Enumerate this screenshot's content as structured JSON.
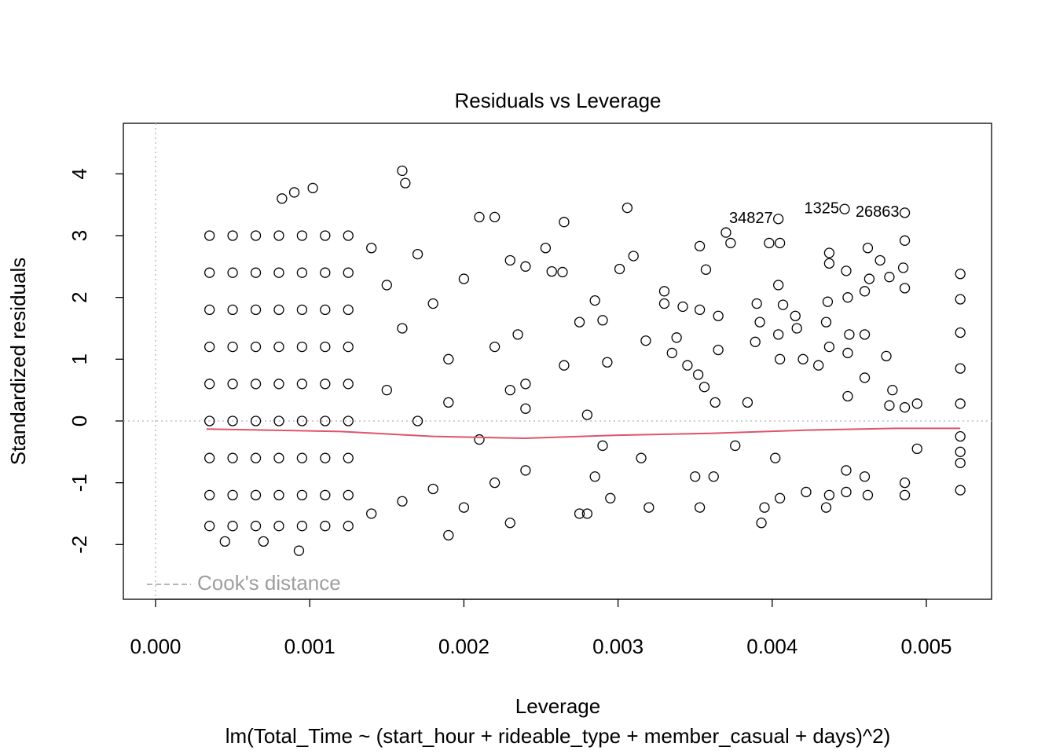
{
  "chart_data": {
    "type": "scatter",
    "title": "Residuals vs Leverage",
    "x_label": "Leverage",
    "y_label": "Standardized residuals",
    "subtitle": "lm(Total_Time ~ (start_hour + rideable_type + member_casual + days)^2)",
    "xlim": [
      -0.000209,
      0.005423
    ],
    "ylim": [
      -2.886,
      4.818
    ],
    "xticks": [
      {
        "value": 0,
        "label": "0.000"
      },
      {
        "value": 0.001,
        "label": "0.001"
      },
      {
        "value": 0.002,
        "label": "0.002"
      },
      {
        "value": 0.003,
        "label": "0.003"
      },
      {
        "value": 0.004,
        "label": "0.004"
      },
      {
        "value": 0.005,
        "label": "0.005"
      }
    ],
    "yticks": [
      -2,
      -1,
      0,
      1,
      2,
      3,
      4
    ],
    "reference_lines": {
      "x": 0,
      "y": 0,
      "color": "#bdbdbd"
    },
    "legend": {
      "label": "Cook's distance",
      "position": "bottomleft",
      "color": "#9e9e9e"
    },
    "series": [
      {
        "name": "Residuals",
        "color": "#000000",
        "x": [
          0.00035,
          0.0005,
          0.00065,
          0.0008,
          0.00095,
          0.0011,
          0.00125,
          0.00035,
          0.0005,
          0.00065,
          0.0008,
          0.00095,
          0.0011,
          0.00125,
          0.00035,
          0.0005,
          0.00065,
          0.0008,
          0.00095,
          0.0011,
          0.00125,
          0.00035,
          0.0005,
          0.00065,
          0.0008,
          0.00095,
          0.0011,
          0.00125,
          0.00035,
          0.0005,
          0.00065,
          0.0008,
          0.00095,
          0.0011,
          0.00125,
          0.00035,
          0.0005,
          0.00065,
          0.0008,
          0.00095,
          0.0011,
          0.00125,
          0.00035,
          0.0005,
          0.00065,
          0.0008,
          0.00095,
          0.0011,
          0.00125,
          0.00035,
          0.0005,
          0.00065,
          0.0008,
          0.00095,
          0.0011,
          0.00125,
          0.00035,
          0.0005,
          0.00065,
          0.0008,
          0.00095,
          0.0011,
          0.00125,
          0.0009,
          0.00102,
          0.00082,
          0.0016,
          0.00162,
          0.00093,
          0.0007,
          0.00045,
          0.0014,
          0.0015,
          0.0016,
          0.0017,
          0.0018,
          0.0019,
          0.002,
          0.0021,
          0.0022,
          0.0023,
          0.0024,
          0.0014,
          0.0016,
          0.0018,
          0.0019,
          0.002,
          0.0022,
          0.0023,
          0.0024,
          0.0015,
          0.0017,
          0.0019,
          0.0021,
          0.0023,
          0.0024,
          0.0022,
          0.00235,
          0.0024,
          0.00265,
          0.00306,
          0.00253,
          0.00257,
          0.00264,
          0.0031,
          0.00301,
          0.00285,
          0.00275,
          0.0029,
          0.00293,
          0.00265,
          0.0028,
          0.0029,
          0.00285,
          0.0028,
          0.00275,
          0.00295,
          0.0032,
          0.00315,
          0.00318,
          0.0033,
          0.0033,
          0.00338,
          0.00335,
          0.00345,
          0.00342,
          0.00353,
          0.00357,
          0.00353,
          0.00352,
          0.00356,
          0.0035,
          0.00353,
          0.00362,
          0.00365,
          0.00365,
          0.00363,
          0.0037,
          0.00373,
          0.00376,
          0.00384,
          0.0039,
          0.00392,
          0.00389,
          0.00398,
          0.00405,
          0.00404,
          0.00407,
          0.00404,
          0.00405,
          0.00395,
          0.00393,
          0.00405,
          0.00402,
          0.00415,
          0.00416,
          0.0042,
          0.00422,
          0.0043,
          0.00437,
          0.00437,
          0.00436,
          0.00435,
          0.00437,
          0.00435,
          0.00437,
          0.00448,
          0.00449,
          0.0045,
          0.00449,
          0.00449,
          0.00448,
          0.00448,
          0.0046,
          0.00462,
          0.00463,
          0.0046,
          0.0046,
          0.00462,
          0.0046,
          0.0047,
          0.00476,
          0.00474,
          0.00478,
          0.00476,
          0.00486,
          0.00485,
          0.00486,
          0.00486,
          0.00486,
          0.00486,
          0.00494,
          0.00494,
          0.00522,
          0.00522,
          0.00522,
          0.00522,
          0.00522,
          0.00522,
          0.00522,
          0.00522,
          0.00522
        ],
        "values": [
          -1.7,
          -1.7,
          -1.7,
          -1.7,
          -1.7,
          -1.7,
          -1.7,
          -1.2,
          -1.2,
          -1.2,
          -1.2,
          -1.2,
          -1.2,
          -1.2,
          -0.6,
          -0.6,
          -0.6,
          -0.6,
          -0.6,
          -0.6,
          -0.6,
          0,
          0,
          0,
          0,
          0,
          0,
          0,
          0.6,
          0.6,
          0.6,
          0.6,
          0.6,
          0.6,
          0.6,
          1.2,
          1.2,
          1.2,
          1.2,
          1.2,
          1.2,
          1.2,
          1.8,
          1.8,
          1.8,
          1.8,
          1.8,
          1.8,
          1.8,
          2.4,
          2.4,
          2.4,
          2.4,
          2.4,
          2.4,
          2.4,
          3.0,
          3.0,
          3.0,
          3.0,
          3.0,
          3.0,
          3.0,
          3.7,
          3.77,
          3.6,
          4.05,
          3.85,
          -2.1,
          -1.95,
          -1.95,
          2.8,
          2.2,
          1.5,
          2.7,
          1.9,
          1.0,
          2.3,
          3.3,
          3.3,
          2.6,
          2.5,
          -1.5,
          -1.3,
          -1.1,
          -1.85,
          -1.4,
          -1.0,
          -1.65,
          -0.8,
          0.5,
          0,
          0.3,
          -0.3,
          0.5,
          0.2,
          1.2,
          1.4,
          0.6,
          3.22,
          3.45,
          2.8,
          2.42,
          2.41,
          2.67,
          2.46,
          1.95,
          1.6,
          1.63,
          0.95,
          0.9,
          0.1,
          -0.4,
          -0.9,
          -1.5,
          -1.5,
          -1.25,
          -1.4,
          -0.6,
          1.3,
          2.1,
          1.9,
          1.35,
          1.1,
          0.9,
          1.85,
          2.83,
          2.45,
          1.8,
          0.75,
          0.55,
          -0.9,
          -1.4,
          -0.9,
          1.7,
          1.15,
          0.3,
          3.05,
          2.88,
          -0.4,
          0.3,
          1.9,
          1.6,
          1.28,
          2.88,
          2.88,
          2.2,
          1.88,
          1.4,
          1.0,
          -1.4,
          -1.65,
          -1.25,
          -0.6,
          1.7,
          1.5,
          1.0,
          -1.15,
          0.9,
          2.72,
          2.55,
          1.93,
          1.6,
          1.2,
          -1.4,
          -1.2,
          2.43,
          2.0,
          1.4,
          1.1,
          0.4,
          -0.8,
          -1.15,
          2.1,
          2.8,
          2.3,
          1.4,
          0.7,
          -1.2,
          -0.9,
          2.6,
          2.33,
          1.05,
          0.5,
          0.25,
          2.92,
          2.48,
          2.15,
          0.22,
          -1.0,
          -1.2,
          0.28,
          -0.45,
          2.38,
          1.97,
          1.43,
          0.85,
          0.28,
          -0.25,
          -0.5,
          -0.68,
          -1.12
        ]
      },
      {
        "name": "Smooth",
        "type": "line",
        "color": "#df536b",
        "x": [
          0.00033,
          0.0012,
          0.0018,
          0.0024,
          0.003,
          0.0036,
          0.0042,
          0.0048,
          0.00522
        ],
        "values": [
          -0.13,
          -0.17,
          -0.25,
          -0.28,
          -0.23,
          -0.2,
          -0.15,
          -0.12,
          -0.12
        ]
      }
    ],
    "annotations": [
      {
        "text": "34827",
        "x": 0.00404,
        "y": 3.27
      },
      {
        "text": "1325",
        "x": 0.00447,
        "y": 3.43
      },
      {
        "text": "26863",
        "x": 0.00486,
        "y": 3.37
      }
    ]
  }
}
